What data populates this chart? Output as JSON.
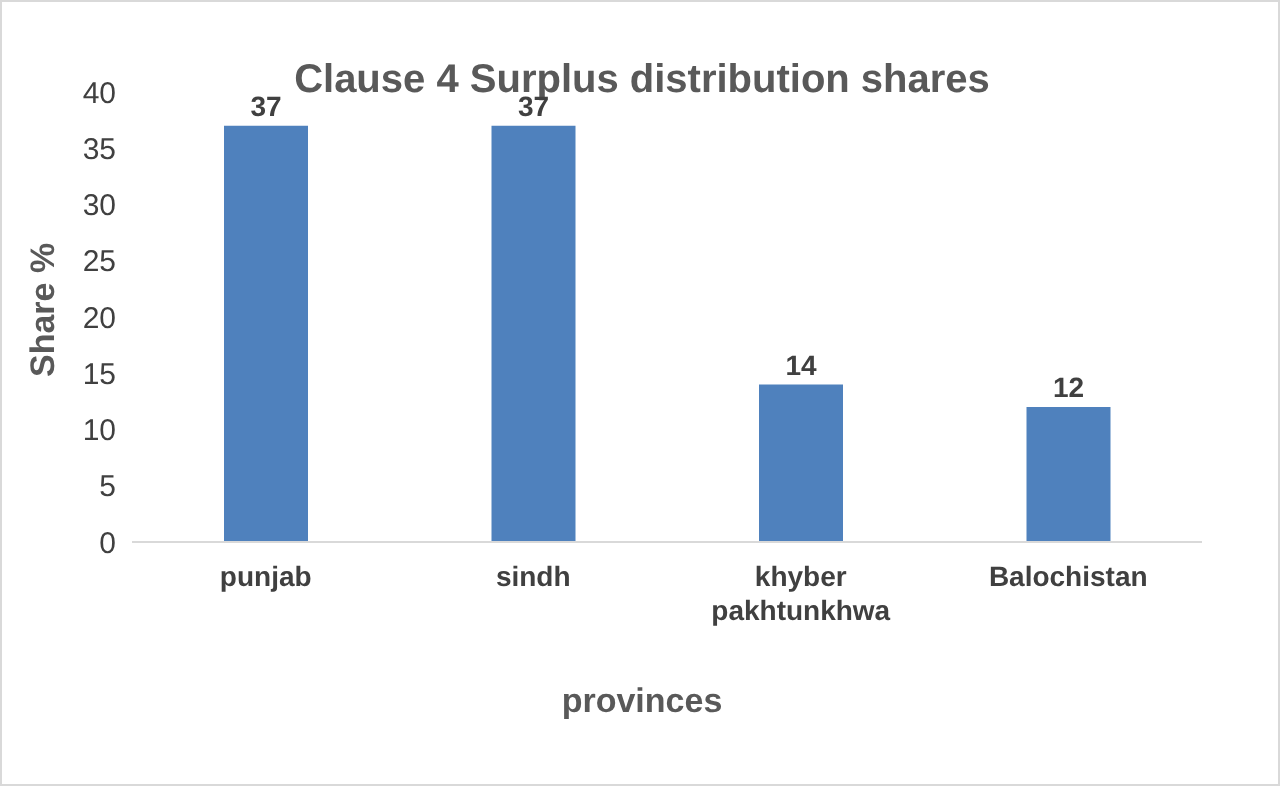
{
  "chart_data": {
    "type": "bar",
    "title": "Clause 4 Surplus distribution shares",
    "xlabel": "provinces",
    "ylabel": "Share %",
    "categories": [
      "punjab",
      "sindh",
      "khyber pakhtunkhwa",
      "Balochistan"
    ],
    "values": [
      37,
      37,
      14,
      12
    ],
    "color": "#4f81bd",
    "ylim": [
      0,
      40
    ],
    "yticks": [
      0,
      5,
      10,
      15,
      20,
      25,
      30,
      35,
      40
    ],
    "grid": false,
    "legend": false,
    "data_labels": true
  }
}
